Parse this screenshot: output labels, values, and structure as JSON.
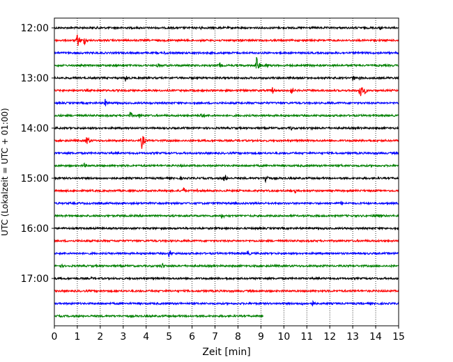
{
  "chart_data": {
    "type": "line",
    "xlabel": "Zeit  [min]",
    "ylabel": "UTC (Lokalzeit = UTC + 01:00)",
    "xlim": [
      0,
      15
    ],
    "xticks": [
      "0",
      "1",
      "2",
      "3",
      "4",
      "5",
      "6",
      "7",
      "8",
      "9",
      "10",
      "11",
      "12",
      "13",
      "14",
      "15"
    ],
    "yticks": [
      "12:00",
      "13:00",
      "14:00",
      "15:00",
      "16:00",
      "17:00"
    ],
    "grid_x": true,
    "trace_interval_minutes": 15,
    "trace_colors": [
      "#000000",
      "#ff0000",
      "#0000ff",
      "#008000"
    ],
    "traces": [
      {
        "start": "12:00",
        "color": "#000000",
        "end_min": 15,
        "events": [
          {
            "t": 1.9,
            "a": 4
          },
          {
            "t": 6.4,
            "a": 3
          },
          {
            "t": 14.2,
            "a": 3
          }
        ]
      },
      {
        "start": "12:15",
        "color": "#ff0000",
        "end_min": 15,
        "events": [
          {
            "t": 1.0,
            "a": 11
          },
          {
            "t": 1.3,
            "a": 7
          }
        ]
      },
      {
        "start": "12:30",
        "color": "#0000ff",
        "end_min": 15,
        "events": [
          {
            "t": 4.8,
            "a": 3
          }
        ]
      },
      {
        "start": "12:45",
        "color": "#008000",
        "end_min": 15,
        "events": [
          {
            "t": 4.5,
            "a": 4
          },
          {
            "t": 7.2,
            "a": 5
          },
          {
            "t": 8.8,
            "a": 14
          },
          {
            "t": 9.2,
            "a": 6
          }
        ]
      },
      {
        "start": "13:00",
        "color": "#000000",
        "end_min": 15,
        "events": [
          {
            "t": 3.1,
            "a": 6
          },
          {
            "t": 13.0,
            "a": 5
          },
          {
            "t": 13.3,
            "a": 3
          }
        ]
      },
      {
        "start": "13:15",
        "color": "#ff0000",
        "end_min": 15,
        "events": [
          {
            "t": 9.5,
            "a": 6
          },
          {
            "t": 10.3,
            "a": 7
          },
          {
            "t": 13.3,
            "a": 13
          },
          {
            "t": 13.5,
            "a": 6
          }
        ]
      },
      {
        "start": "13:30",
        "color": "#0000ff",
        "end_min": 15,
        "events": [
          {
            "t": 2.2,
            "a": 7
          }
        ]
      },
      {
        "start": "13:45",
        "color": "#008000",
        "end_min": 15,
        "events": [
          {
            "t": 3.3,
            "a": 6
          },
          {
            "t": 3.7,
            "a": 4
          },
          {
            "t": 6.4,
            "a": 6
          }
        ]
      },
      {
        "start": "14:00",
        "color": "#000000",
        "end_min": 15,
        "events": [
          {
            "t": 10.3,
            "a": 4
          },
          {
            "t": 11.2,
            "a": 3
          }
        ]
      },
      {
        "start": "14:15",
        "color": "#ff0000",
        "end_min": 15,
        "events": [
          {
            "t": 1.4,
            "a": 9
          },
          {
            "t": 3.8,
            "a": 13
          },
          {
            "t": 13.7,
            "a": 4
          }
        ]
      },
      {
        "start": "14:30",
        "color": "#0000ff",
        "end_min": 15,
        "events": [
          {
            "t": 7.0,
            "a": 2
          }
        ]
      },
      {
        "start": "14:45",
        "color": "#008000",
        "end_min": 15,
        "events": [
          {
            "t": 1.3,
            "a": 4
          },
          {
            "t": 5.5,
            "a": 3
          },
          {
            "t": 12.5,
            "a": 3
          }
        ]
      },
      {
        "start": "15:00",
        "color": "#000000",
        "end_min": 15,
        "events": [
          {
            "t": 7.4,
            "a": 7
          },
          {
            "t": 9.2,
            "a": 8
          },
          {
            "t": 5.5,
            "a": 3
          }
        ]
      },
      {
        "start": "15:15",
        "color": "#ff0000",
        "end_min": 15,
        "events": [
          {
            "t": 5.6,
            "a": 7
          },
          {
            "t": 10.5,
            "a": 4
          },
          {
            "t": 6.2,
            "a": 4
          }
        ]
      },
      {
        "start": "15:30",
        "color": "#0000ff",
        "end_min": 15,
        "events": [
          {
            "t": 12.5,
            "a": 4
          }
        ]
      },
      {
        "start": "15:45",
        "color": "#008000",
        "end_min": 15,
        "events": [
          {
            "t": 7.3,
            "a": 5
          },
          {
            "t": 14.0,
            "a": 5
          }
        ]
      },
      {
        "start": "16:00",
        "color": "#000000",
        "end_min": 15,
        "events": [
          {
            "t": 7.0,
            "a": 3
          }
        ]
      },
      {
        "start": "16:15",
        "color": "#ff0000",
        "end_min": 15,
        "events": []
      },
      {
        "start": "16:30",
        "color": "#0000ff",
        "end_min": 15,
        "events": [
          {
            "t": 5.0,
            "a": 7
          },
          {
            "t": 8.4,
            "a": 6
          }
        ]
      },
      {
        "start": "16:45",
        "color": "#008000",
        "end_min": 15,
        "events": [
          {
            "t": 4.7,
            "a": 5
          },
          {
            "t": 0.3,
            "a": 3
          }
        ]
      },
      {
        "start": "17:00",
        "color": "#000000",
        "end_min": 15,
        "events": [
          {
            "t": 1.6,
            "a": 3
          },
          {
            "t": 7.5,
            "a": 3
          }
        ]
      },
      {
        "start": "17:15",
        "color": "#ff0000",
        "end_min": 15,
        "events": []
      },
      {
        "start": "17:30",
        "color": "#0000ff",
        "end_min": 15,
        "events": [
          {
            "t": 11.2,
            "a": 7
          },
          {
            "t": 10.8,
            "a": 3
          }
        ]
      },
      {
        "start": "17:45",
        "color": "#008000",
        "end_min": 9.1,
        "events": []
      }
    ]
  }
}
